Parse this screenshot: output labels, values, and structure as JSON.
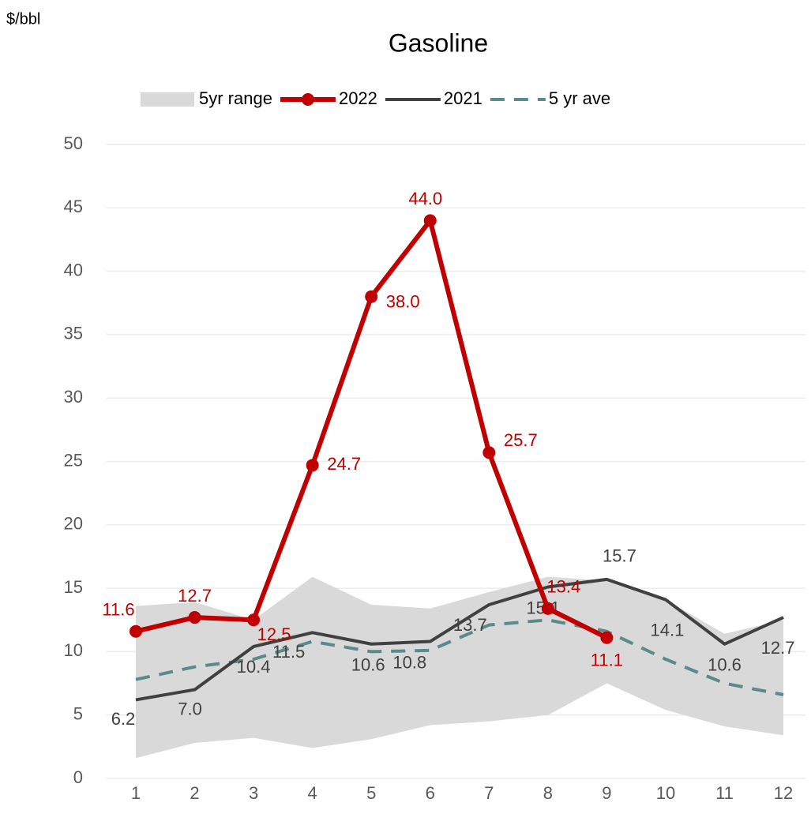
{
  "chart_data": {
    "type": "line",
    "title": "Gasoline",
    "y_label": "$/bbl",
    "categories": [
      1,
      2,
      3,
      4,
      5,
      6,
      7,
      8,
      9,
      10,
      11,
      12
    ],
    "ylim": [
      0,
      50
    ],
    "yticks": [
      0,
      5,
      10,
      15,
      20,
      25,
      30,
      35,
      40,
      45,
      50
    ],
    "grid": true,
    "series": [
      {
        "name": "5yr range",
        "kind": "range",
        "color": "#d9d9d9",
        "high": [
          13.6,
          13.9,
          12.5,
          15.9,
          13.7,
          13.4,
          14.7,
          15.9,
          15.6,
          14.1,
          11.4,
          12.5
        ],
        "low": [
          1.6,
          2.8,
          3.2,
          2.4,
          3.1,
          4.2,
          4.5,
          5.0,
          7.5,
          5.4,
          4.1,
          3.4
        ]
      },
      {
        "name": "2022",
        "kind": "marker",
        "color": "#c00000",
        "values": [
          11.6,
          12.7,
          12.5,
          24.7,
          38.0,
          44.0,
          25.7,
          13.4,
          11.1,
          null,
          null,
          null
        ],
        "value_labels": [
          "11.6",
          "12.7",
          "12.5",
          "24.7",
          "38.0",
          "44.0",
          "25.7",
          "13.4",
          "11.1",
          null,
          null,
          null
        ]
      },
      {
        "name": "2021",
        "kind": "solid",
        "color": "#404040",
        "values": [
          6.2,
          7.0,
          10.4,
          11.5,
          10.6,
          10.8,
          13.7,
          15.1,
          15.7,
          14.1,
          10.6,
          12.7
        ],
        "value_labels": [
          "6.2",
          "7.0",
          "10.4",
          "11.5",
          "10.6",
          "10.8",
          "13.7",
          "15.1",
          "15.7",
          "14.1",
          "10.6",
          "12.7"
        ]
      },
      {
        "name": "5 yr ave",
        "kind": "dashed",
        "color": "#5b8a8a",
        "values": [
          7.8,
          8.8,
          9.4,
          10.8,
          10.0,
          10.1,
          12.1,
          12.5,
          11.6,
          9.4,
          7.5,
          6.6
        ]
      }
    ]
  }
}
